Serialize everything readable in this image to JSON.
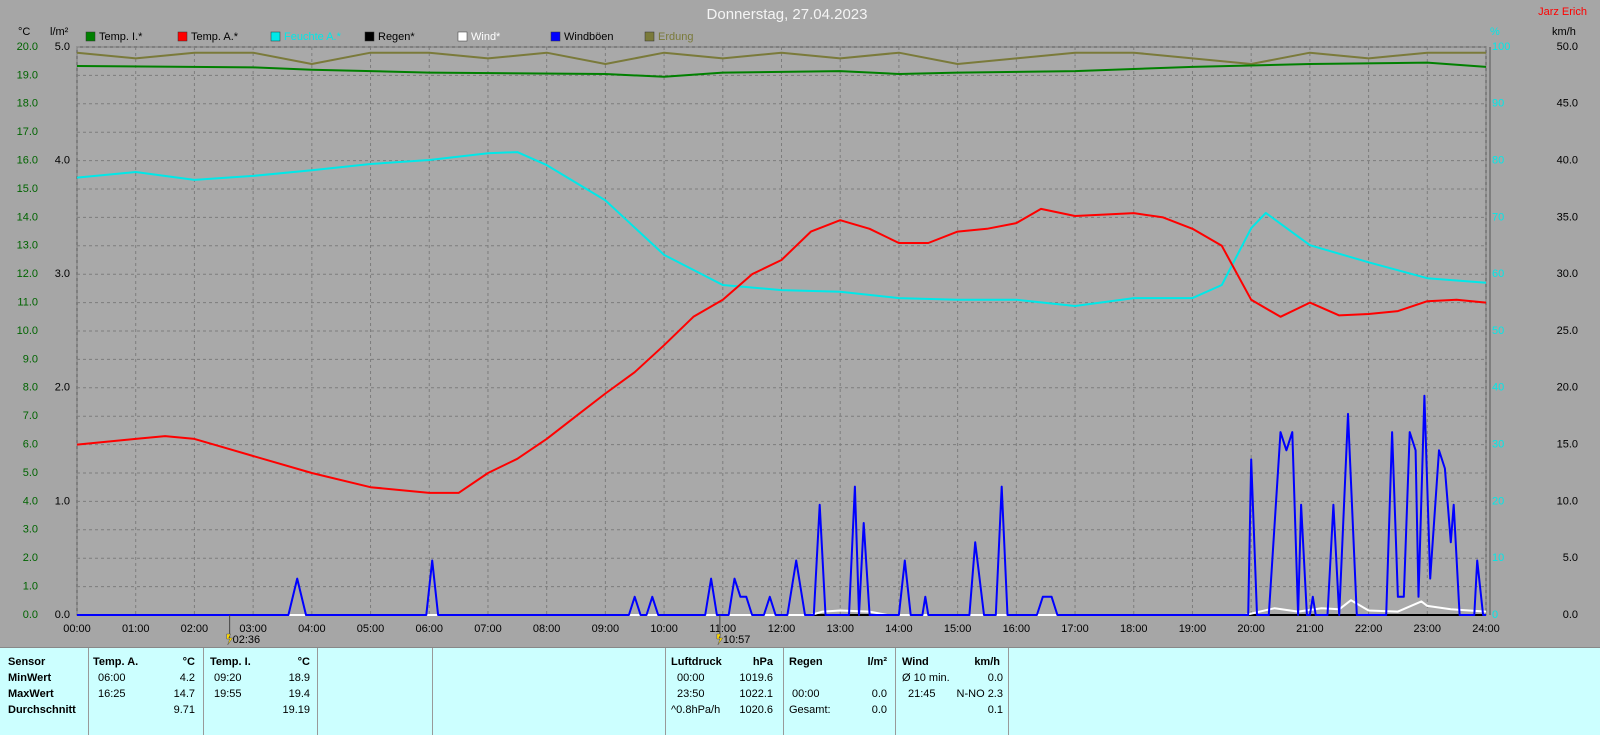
{
  "chart_data": {
    "type": "line",
    "title": "Donnerstag, 27.04.2023",
    "author": "Jarz Erich",
    "y_unit": "°C",
    "y3_unit": "l/m²",
    "y4_unit": "%",
    "y2_unit": "km/h",
    "grid": true,
    "xlim": [
      0,
      24
    ],
    "xticks": [
      {
        "value": 0,
        "label": "00:00"
      },
      {
        "value": 1,
        "label": "01:00"
      },
      {
        "value": 2,
        "label": "02:00"
      },
      {
        "value": 3,
        "label": "03:00"
      },
      {
        "value": 4,
        "label": "04:00"
      },
      {
        "value": 5,
        "label": "05:00"
      },
      {
        "value": 6,
        "label": "06:00"
      },
      {
        "value": 7,
        "label": "07:00"
      },
      {
        "value": 8,
        "label": "08:00"
      },
      {
        "value": 9,
        "label": "09:00"
      },
      {
        "value": 10,
        "label": "10:00"
      },
      {
        "value": 11,
        "label": "11:00"
      },
      {
        "value": 12,
        "label": "12:00"
      },
      {
        "value": 13,
        "label": "13:00"
      },
      {
        "value": 14,
        "label": "14:00"
      },
      {
        "value": 15,
        "label": "15:00"
      },
      {
        "value": 16,
        "label": "16:00"
      },
      {
        "value": 17,
        "label": "17:00"
      },
      {
        "value": 18,
        "label": "18:00"
      },
      {
        "value": 19,
        "label": "19:00"
      },
      {
        "value": 20,
        "label": "20:00"
      },
      {
        "value": 21,
        "label": "21:00"
      },
      {
        "value": 22,
        "label": "22:00"
      },
      {
        "value": 23,
        "label": "23:00"
      },
      {
        "value": 24,
        "label": "24:00"
      }
    ],
    "ylim": [
      0,
      20
    ],
    "yticks": [
      {
        "value": 0,
        "label": "0.0"
      },
      {
        "value": 1,
        "label": "1.0"
      },
      {
        "value": 2,
        "label": "2.0"
      },
      {
        "value": 3,
        "label": "3.0"
      },
      {
        "value": 4,
        "label": "4.0"
      },
      {
        "value": 5,
        "label": "5.0"
      },
      {
        "value": 6,
        "label": "6.0"
      },
      {
        "value": 7,
        "label": "7.0"
      },
      {
        "value": 8,
        "label": "8.0"
      },
      {
        "value": 9,
        "label": "9.0"
      },
      {
        "value": 10,
        "label": "10.0"
      },
      {
        "value": 11,
        "label": "11.0"
      },
      {
        "value": 12,
        "label": "12.0"
      },
      {
        "value": 13,
        "label": "13.0"
      },
      {
        "value": 14,
        "label": "14.0"
      },
      {
        "value": 15,
        "label": "15.0"
      },
      {
        "value": 16,
        "label": "16.0"
      },
      {
        "value": 17,
        "label": "17.0"
      },
      {
        "value": 18,
        "label": "18.0"
      },
      {
        "value": 19,
        "label": "19.0"
      },
      {
        "value": 20,
        "label": "20.0"
      }
    ],
    "y3lim": [
      0,
      5
    ],
    "y3ticks": [
      {
        "value": 0,
        "label": "0.0"
      },
      {
        "value": 1,
        "label": "1.0"
      },
      {
        "value": 2,
        "label": "2.0"
      },
      {
        "value": 3,
        "label": "3.0"
      },
      {
        "value": 4,
        "label": "4.0"
      },
      {
        "value": 5,
        "label": "5.0"
      }
    ],
    "y4lim": [
      0,
      100
    ],
    "y4ticks": [
      0,
      10,
      20,
      30,
      40,
      50,
      60,
      70,
      80,
      90,
      100
    ],
    "y2lim": [
      0,
      50
    ],
    "y2ticks": [
      {
        "value": 0,
        "label": "0.0"
      },
      {
        "value": 5,
        "label": "5.0"
      },
      {
        "value": 10,
        "label": "10.0"
      },
      {
        "value": 15,
        "label": "15.0"
      },
      {
        "value": 20,
        "label": "20.0"
      },
      {
        "value": 25,
        "label": "25.0"
      },
      {
        "value": 30,
        "label": "30.0"
      },
      {
        "value": 35,
        "label": "35.0"
      },
      {
        "value": 40,
        "label": "40.0"
      },
      {
        "value": 45,
        "label": "45.0"
      },
      {
        "value": 50,
        "label": "50.0"
      }
    ],
    "series": [
      {
        "name": "Temp. I.*",
        "color": "#008000",
        "axis": "y",
        "x": [
          0,
          3,
          4,
          6,
          9,
          10,
          11,
          13,
          14,
          15,
          17,
          19,
          21,
          23,
          24
        ],
        "values": [
          19.33,
          19.28,
          19.2,
          19.1,
          19.05,
          18.95,
          19.1,
          19.15,
          19.05,
          19.1,
          19.15,
          19.3,
          19.4,
          19.45,
          19.3
        ]
      },
      {
        "name": "Temp. A.*",
        "color": "#ff0000",
        "axis": "y",
        "x": [
          0,
          1,
          1.5,
          2,
          2.5,
          3,
          4,
          5,
          6,
          6.5,
          7,
          7.5,
          8,
          8.5,
          9,
          9.5,
          10,
          10.5,
          11,
          11.5,
          12,
          12.5,
          13,
          13.5,
          14,
          14.5,
          15,
          15.5,
          16,
          16.42,
          17,
          18,
          18.5,
          19,
          19.5,
          20,
          20.5,
          21,
          21.5,
          22,
          22.5,
          23,
          23.5,
          24
        ],
        "values": [
          6.0,
          6.2,
          6.3,
          6.2,
          5.9,
          5.6,
          5.0,
          4.5,
          4.3,
          4.3,
          5.0,
          5.5,
          6.2,
          7.0,
          7.8,
          8.55,
          9.5,
          10.5,
          11.1,
          12.0,
          12.5,
          13.5,
          13.9,
          13.6,
          13.1,
          13.1,
          13.5,
          13.6,
          13.8,
          14.3,
          14.05,
          14.15,
          14.0,
          13.6,
          13.0,
          11.1,
          10.5,
          11.0,
          10.55,
          10.6,
          10.7,
          11.05,
          11.1,
          11.0
        ]
      },
      {
        "name": "Feuchte A.*",
        "color": "#00e8e8",
        "axis": "y4",
        "x": [
          0,
          1,
          2,
          3,
          4,
          5,
          6,
          7,
          7.5,
          8,
          9,
          10,
          11,
          12,
          13,
          14,
          15,
          16,
          17,
          18,
          19,
          19.5,
          20,
          20.25,
          21,
          22,
          23,
          24
        ],
        "values": [
          77,
          78,
          76.6,
          77.3,
          78.3,
          79.4,
          80.1,
          81.3,
          81.5,
          79.2,
          73,
          63.4,
          58.1,
          57.2,
          56.9,
          55.8,
          55.5,
          55.5,
          54.4,
          55.8,
          55.8,
          58.1,
          68.1,
          70.8,
          65.1,
          62.1,
          59.3,
          58.5
        ]
      },
      {
        "name": "Regen*",
        "color": "#000000",
        "axis": "y3",
        "x": [
          0,
          24
        ],
        "values": [
          0,
          0
        ]
      },
      {
        "name": "Wind*",
        "color": "#ffffff",
        "axis": "y2",
        "x": [
          0,
          12.5,
          12.7,
          13.0,
          13.5,
          13.8,
          19.9,
          20.4,
          20.8,
          21.2,
          21.5,
          21.7,
          22.0,
          22.5,
          22.9,
          23.0,
          23.4,
          24
        ],
        "values": [
          0,
          0,
          0.3,
          0.4,
          0.3,
          0,
          0,
          0.6,
          0.3,
          0.6,
          0.5,
          1.3,
          0.4,
          0.3,
          1.2,
          0.8,
          0.5,
          0.3
        ]
      },
      {
        "name": "Windböen",
        "color": "#0000ff",
        "axis": "y2",
        "x": [
          0,
          3.6,
          3.75,
          3.9,
          5.95,
          6.05,
          6.15,
          9.4,
          9.5,
          9.6,
          9.7,
          9.8,
          9.9,
          10.7,
          10.8,
          10.9,
          11.1,
          11.2,
          11.3,
          11.4,
          11.5,
          11.7,
          11.8,
          11.9,
          12.1,
          12.25,
          12.4,
          12.55,
          12.65,
          12.75,
          13.15,
          13.25,
          13.32,
          13.4,
          13.5,
          14.0,
          14.1,
          14.2,
          14.4,
          14.45,
          14.5,
          15.2,
          15.3,
          15.45,
          15.65,
          15.75,
          15.85,
          16.35,
          16.45,
          16.6,
          16.7,
          19.95,
          20.0,
          20.1,
          20.3,
          20.5,
          20.6,
          20.7,
          20.8,
          20.85,
          20.95,
          21.0,
          21.05,
          21.1,
          21.3,
          21.4,
          21.5,
          21.65,
          21.8,
          22.3,
          22.4,
          22.5,
          22.6,
          22.7,
          22.8,
          22.85,
          22.95,
          23.05,
          23.2,
          23.3,
          23.4,
          23.45,
          23.55,
          23.8,
          23.85,
          23.95,
          24
        ],
        "values": [
          0,
          0,
          3.2,
          0,
          0,
          4.8,
          0,
          0,
          1.6,
          0,
          0,
          1.6,
          0,
          0,
          3.2,
          0,
          0,
          3.2,
          1.6,
          1.6,
          0,
          0,
          1.6,
          0,
          0,
          4.8,
          0,
          0,
          9.7,
          0,
          0,
          11.3,
          0,
          8.1,
          0,
          0,
          4.8,
          0,
          0,
          1.6,
          0,
          0,
          6.4,
          0,
          0,
          11.3,
          0,
          0,
          1.6,
          1.6,
          0,
          0,
          13.7,
          0,
          0,
          16.1,
          14.5,
          16.1,
          0,
          9.7,
          0,
          0,
          1.6,
          0,
          0,
          9.7,
          0,
          17.7,
          0,
          0,
          16.1,
          1.6,
          1.6,
          16.1,
          14.5,
          1.6,
          19.3,
          3.2,
          14.5,
          12.9,
          6.4,
          9.7,
          0,
          0,
          4.8,
          0,
          0
        ]
      },
      {
        "name": "Erdung",
        "color": "#7a7a3a",
        "axis": "y4",
        "x": [
          0,
          1,
          2,
          3,
          4,
          5,
          6,
          7,
          8,
          9,
          10,
          11,
          12,
          13,
          14,
          15,
          16,
          17,
          18,
          19,
          20,
          21,
          22,
          23,
          24
        ],
        "values": [
          99,
          98,
          99,
          99,
          97,
          99,
          99,
          98,
          99,
          97,
          99,
          98,
          99,
          98,
          99,
          97,
          98,
          99,
          99,
          98,
          97,
          99,
          98,
          99,
          99
        ]
      }
    ],
    "events": [
      {
        "x": 2.6,
        "label": "02:36"
      },
      {
        "x": 10.95,
        "label": "10:57"
      }
    ]
  },
  "stats": {
    "sensor": {
      "header": "Sensor",
      "rows": [
        "MinWert",
        "MaxWert",
        "Durchschnitt"
      ]
    },
    "temp_a": {
      "header": "Temp. A.",
      "unit": "°C",
      "min_time": "06:00",
      "min": "4.2",
      "max_time": "16:25",
      "max": "14.7",
      "avg": "9.71"
    },
    "temp_i": {
      "header": "Temp. I.",
      "unit": "°C",
      "min_time": "09:20",
      "min": "18.9",
      "max_time": "19:55",
      "max": "19.4",
      "avg": "19.19"
    },
    "pressure": {
      "header": "Luftdruck",
      "unit": "hPa",
      "min_time": "00:00",
      "min": "1019.6",
      "max_time": "23:50",
      "max": "1022.1",
      "trend": "^0.8hPa/h",
      "avg": "1020.6"
    },
    "rain": {
      "header": "Regen",
      "unit": "l/m²",
      "max_time": "00:00",
      "max": "0.0",
      "total_label": "Gesamt:",
      "total": "0.0"
    },
    "wind": {
      "header": "Wind",
      "unit": "km/h",
      "avg_label": "Ø 10 min.",
      "avg": "0.0",
      "max_time": "21:45",
      "max": "N-NO 2.3",
      "mean": "0.1"
    }
  }
}
